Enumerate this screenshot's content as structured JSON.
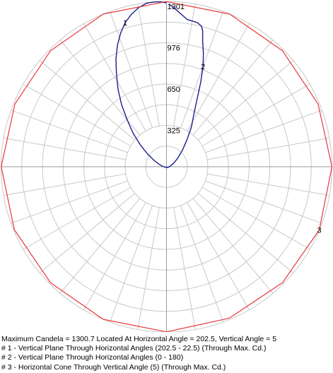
{
  "chart_data": {
    "type": "polar",
    "rlim": [
      0,
      1301
    ],
    "radial_tick_labels": [
      "325",
      "650",
      "976",
      "1301"
    ],
    "grid": true,
    "angular_step_degrees": 10,
    "colors": {
      "grid": "#c8c8c8",
      "vertical_planes": "#1a1f8c",
      "horizontal_cone": "#e8383c",
      "axis": "#9a9a9a"
    },
    "series": [
      {
        "name": "1",
        "label_at_deg": 195,
        "points_deg_cd": [
          [
            180,
            1290
          ],
          [
            182,
            1298
          ],
          [
            184,
            1300
          ],
          [
            187,
            1296
          ],
          [
            190,
            1270
          ],
          [
            193,
            1230
          ],
          [
            196,
            1180
          ],
          [
            199,
            1110
          ],
          [
            202,
            1030
          ],
          [
            205,
            940
          ],
          [
            208,
            840
          ],
          [
            212,
            720
          ],
          [
            216,
            600
          ],
          [
            220,
            480
          ],
          [
            225,
            370
          ],
          [
            230,
            270
          ],
          [
            236,
            180
          ],
          [
            243,
            110
          ],
          [
            252,
            60
          ],
          [
            265,
            30
          ],
          [
            290,
            12
          ],
          [
            360,
            5
          ]
        ]
      },
      {
        "name": "2",
        "label_at_deg": 160,
        "points_deg_cd": [
          [
            0,
            5
          ],
          [
            60,
            12
          ],
          [
            100,
            30
          ],
          [
            115,
            60
          ],
          [
            127,
            110
          ],
          [
            136,
            180
          ],
          [
            143,
            270
          ],
          [
            148,
            370
          ],
          [
            153,
            480
          ],
          [
            156,
            600
          ],
          [
            158,
            720
          ],
          [
            160,
            840
          ],
          [
            162,
            940
          ],
          [
            164,
            1030
          ],
          [
            165,
            1100
          ],
          [
            166,
            1140
          ],
          [
            168,
            1160
          ],
          [
            172,
            1170
          ],
          [
            176,
            1230
          ],
          [
            179,
            1280
          ]
        ]
      },
      {
        "name": "3",
        "label_at_deg": 70,
        "points_deg_cd": [
          [
            0,
            1300
          ],
          [
            22.5,
            1290
          ],
          [
            45,
            1290
          ],
          [
            67.5,
            1300
          ],
          [
            90,
            1301
          ],
          [
            112.5,
            1290
          ],
          [
            135,
            1290
          ],
          [
            157.5,
            1300
          ],
          [
            180,
            1300
          ],
          [
            202.5,
            1300.7
          ],
          [
            225,
            1290
          ],
          [
            247.5,
            1290
          ],
          [
            270,
            1300
          ],
          [
            292.5,
            1295
          ],
          [
            315,
            1290
          ],
          [
            337.5,
            1300
          ]
        ]
      }
    ]
  },
  "footer": {
    "line1": "Maximum Candela = 1300.7   Located At Horizontal Angle = 202.5, Vertical Angle = 5",
    "line2": "# 1 - Vertical Plane Through Horizontal Angles (202.5 - 22.5) (Through Max. Cd.)",
    "line3": "# 2 - Vertical Plane Through Horizontal Angles (0 - 180)",
    "line4": "# 3 - Horizontal Cone Through Vertical Angle (5) (Through Max. Cd.)"
  }
}
